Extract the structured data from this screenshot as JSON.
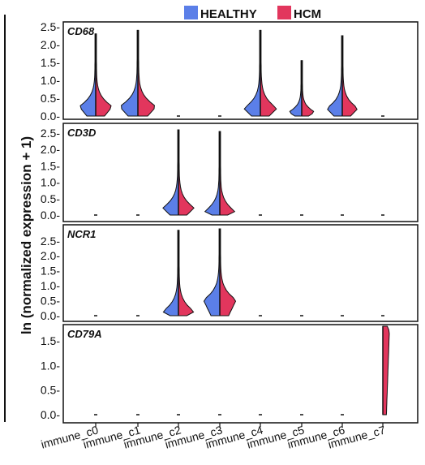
{
  "chart_data": {
    "type": "violin",
    "legend": {
      "placement": "top",
      "entries": [
        {
          "label": "HEALTHY",
          "color": "#5b7fe8"
        },
        {
          "label": "HCM",
          "color": "#e2365d"
        }
      ]
    },
    "ylabel": "ln (normalized expression + 1)",
    "categories": [
      "immune_c0",
      "immune_c1",
      "immune_c2",
      "immune_c3",
      "immune_c4",
      "immune_c5",
      "immune_c6",
      "immune_c7"
    ],
    "panels": [
      {
        "gene": "CD68",
        "ylim": [
          0,
          2.5
        ],
        "ticks": [
          0.0,
          0.5,
          1.0,
          1.5,
          2.0,
          2.5
        ],
        "tick_labels": [
          "0.0-",
          "0.5-",
          "1.0-",
          "1.5-",
          "2.0-",
          "2.5-"
        ],
        "violins": [
          {
            "max": 2.3,
            "peak": 0.25,
            "width": 0.9
          },
          {
            "max": 2.4,
            "peak": 0.25,
            "width": 1.0
          },
          null,
          null,
          {
            "max": 2.4,
            "peak": 0.2,
            "width": 0.9
          },
          {
            "max": 1.55,
            "peak": 0.1,
            "width": 0.7
          },
          {
            "max": 2.25,
            "peak": 0.2,
            "width": 0.85
          },
          null
        ]
      },
      {
        "gene": "CD3D",
        "ylim": [
          0,
          2.6
        ],
        "ticks": [
          0.0,
          0.5,
          1.0,
          1.5,
          2.0,
          2.5
        ],
        "tick_labels": [
          "0.0-",
          "0.5-",
          "1.0-",
          "1.5-",
          "2.0-",
          "2.5-"
        ],
        "violins": [
          null,
          null,
          {
            "max": 2.6,
            "peak": 0.2,
            "width": 0.85
          },
          {
            "max": 2.55,
            "peak": 0.1,
            "width": 0.8
          },
          null,
          null,
          null,
          null
        ]
      },
      {
        "gene": "NCR1",
        "ylim": [
          0,
          2.9
        ],
        "ticks": [
          0.0,
          0.5,
          1.0,
          1.5,
          2.0,
          2.5
        ],
        "tick_labels": [
          "0.0-",
          "0.5-",
          "1.0-",
          "1.5-",
          "2.0-",
          "2.5-"
        ],
        "violins": [
          null,
          null,
          {
            "max": 2.85,
            "peak": 0.12,
            "width": 0.85
          },
          {
            "max": 2.9,
            "peak": 0.5,
            "width": 0.9
          },
          null,
          null,
          null,
          null
        ]
      },
      {
        "gene": "CD79A",
        "ylim": [
          0,
          1.8
        ],
        "ticks": [
          0.0,
          0.5,
          1.0,
          1.5
        ],
        "tick_labels": [
          "0.0-",
          "0.5-",
          "1.0-",
          "1.5-"
        ],
        "violins": [
          null,
          null,
          null,
          null,
          null,
          null,
          null,
          {
            "max": 1.8,
            "peak": 0.1,
            "width": 0.6,
            "hcm_only": true
          }
        ]
      }
    ]
  }
}
